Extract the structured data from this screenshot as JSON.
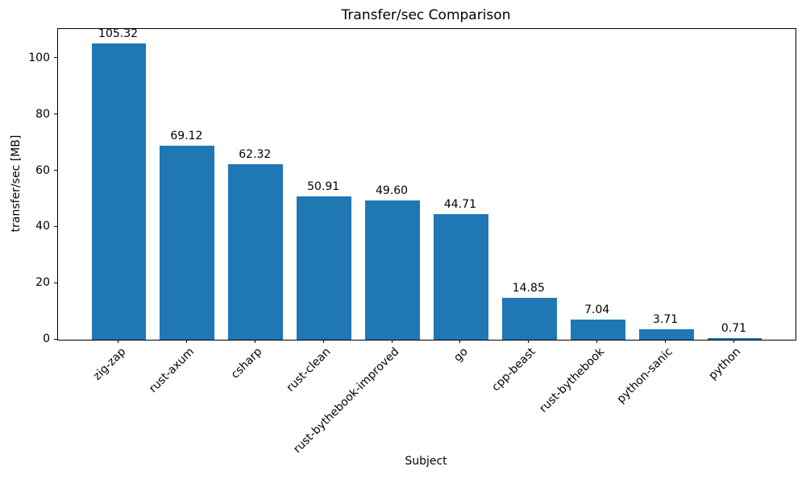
{
  "chart_data": {
    "type": "bar",
    "title": "Transfer/sec Comparison",
    "xlabel": "Subject",
    "ylabel": "transfer/sec [MB]",
    "categories": [
      "zig-zap",
      "rust-axum",
      "csharp",
      "rust-clean",
      "rust-bythebook-improved",
      "go",
      "cpp-beast",
      "rust-bythebook",
      "python-sanic",
      "python"
    ],
    "values": [
      105.32,
      69.12,
      62.32,
      50.91,
      49.6,
      44.71,
      14.85,
      7.04,
      3.71,
      0.71
    ],
    "bar_labels": [
      "105.32",
      "69.12",
      "62.32",
      "50.91",
      "49.60",
      "44.71",
      "14.85",
      "7.04",
      "3.71",
      "0.71"
    ],
    "yticks": [
      0,
      20,
      40,
      60,
      80,
      100
    ],
    "ylim": [
      0,
      110.59
    ],
    "xtick_rotation_deg": 45,
    "grid": false,
    "legend": null,
    "bar_color": "#1f77b4",
    "text_color": "#000000",
    "background_color": "#ffffff"
  }
}
